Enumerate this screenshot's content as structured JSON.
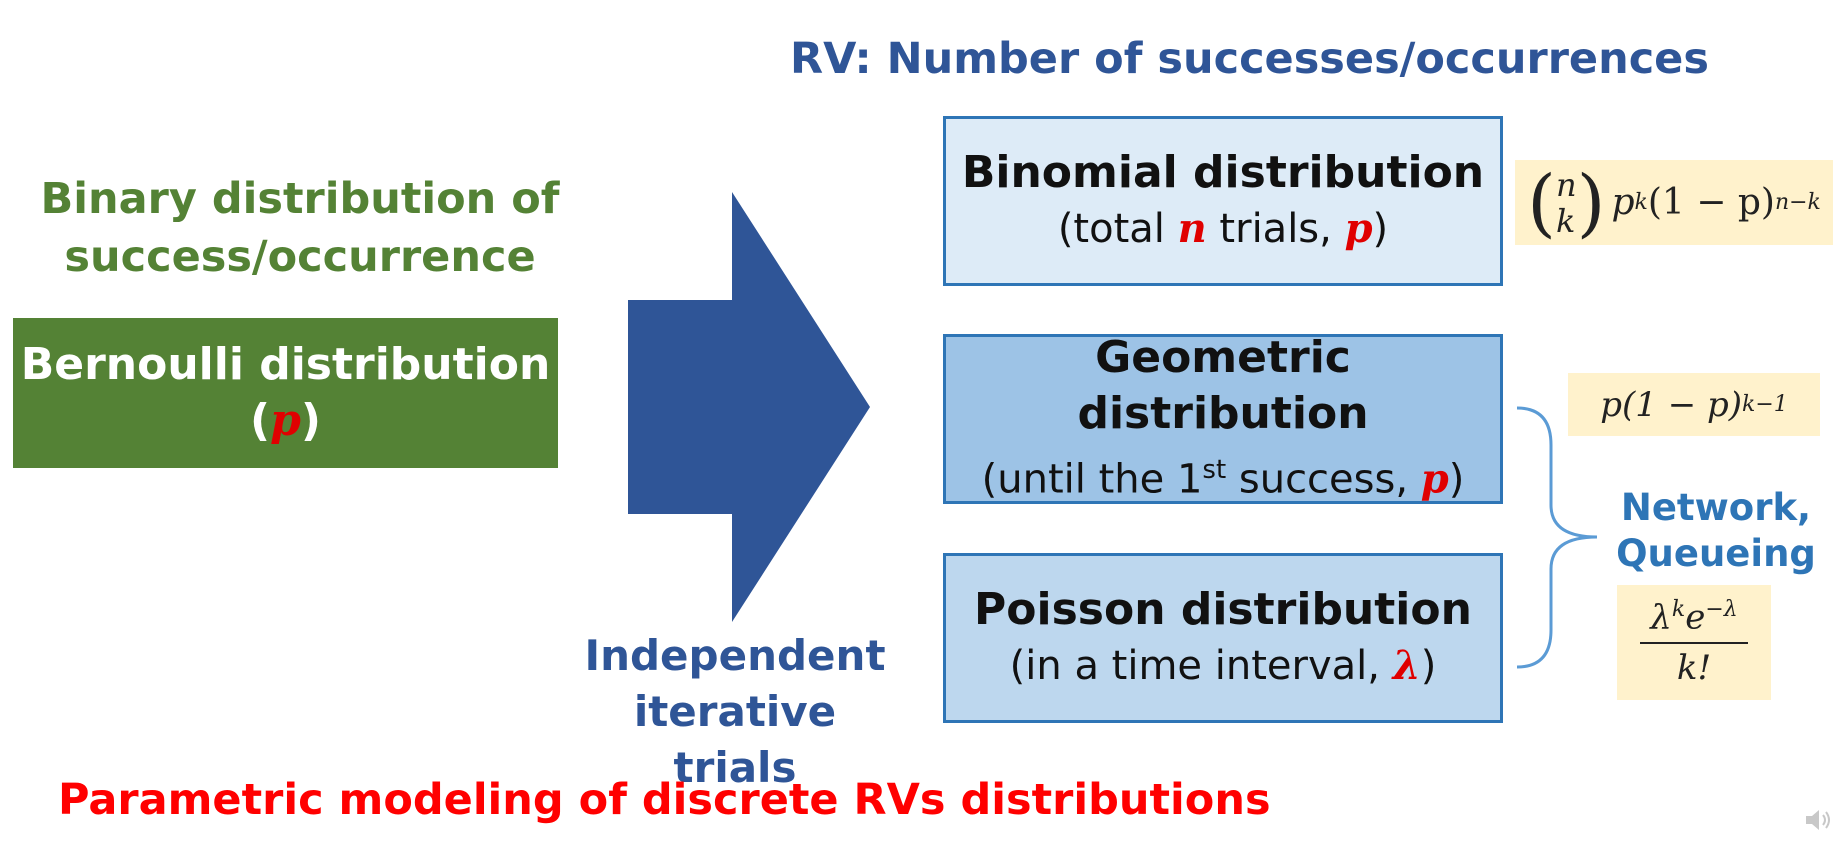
{
  "header": "RV: Number of successes/occurrences",
  "left": {
    "binary_label_line1": "Binary distribution of",
    "binary_label_line2": "success/occurrence",
    "bernoulli_title": "Bernoulli distribution",
    "bernoulli_param_open": "(",
    "bernoulli_param": "p",
    "bernoulli_param_close": ")"
  },
  "arrow": {
    "label_line1": "Independent",
    "label_line2": "iterative trials"
  },
  "distributions": [
    {
      "title": "Binomial distribution",
      "sub_pre": "(total ",
      "param1": "n",
      "sub_mid": " trials, ",
      "param2": "p",
      "sub_post": ")"
    },
    {
      "title": "Geometric distribution",
      "sub_pre": "(until the 1",
      "sub_sup": "st",
      "sub_mid": " success, ",
      "param": "p",
      "sub_post": ")"
    },
    {
      "title": "Poisson distribution",
      "sub_pre": "(in a time interval, ",
      "param": "λ",
      "sub_post": ")"
    }
  ],
  "formulas": {
    "binomial": {
      "n": "n",
      "k": "k",
      "expr": "p",
      "exp1": "k",
      "rest": "(1 − p)",
      "exp2": "n−k"
    },
    "geometric": {
      "expr": "p(1 − p)",
      "exp": "k−1"
    },
    "poisson": {
      "num": "λ",
      "num_exp": "k",
      "num_e": "e",
      "num_e_exp": "−λ",
      "den": "k!"
    }
  },
  "network_label_line1": "Network,",
  "network_label_line2": "Queueing",
  "footer": "Parametric modeling of discrete RVs distributions",
  "colors": {
    "blue_dark": "#2f5597",
    "green": "#548235",
    "red": "#ff0000",
    "box_blue_light": "#ddebf7",
    "box_blue_mid": "#9dc3e6",
    "box_blue_soft": "#bdd7ee",
    "formula_bg": "#fff2cc"
  },
  "icons": {
    "speaker": "speaker-icon"
  }
}
